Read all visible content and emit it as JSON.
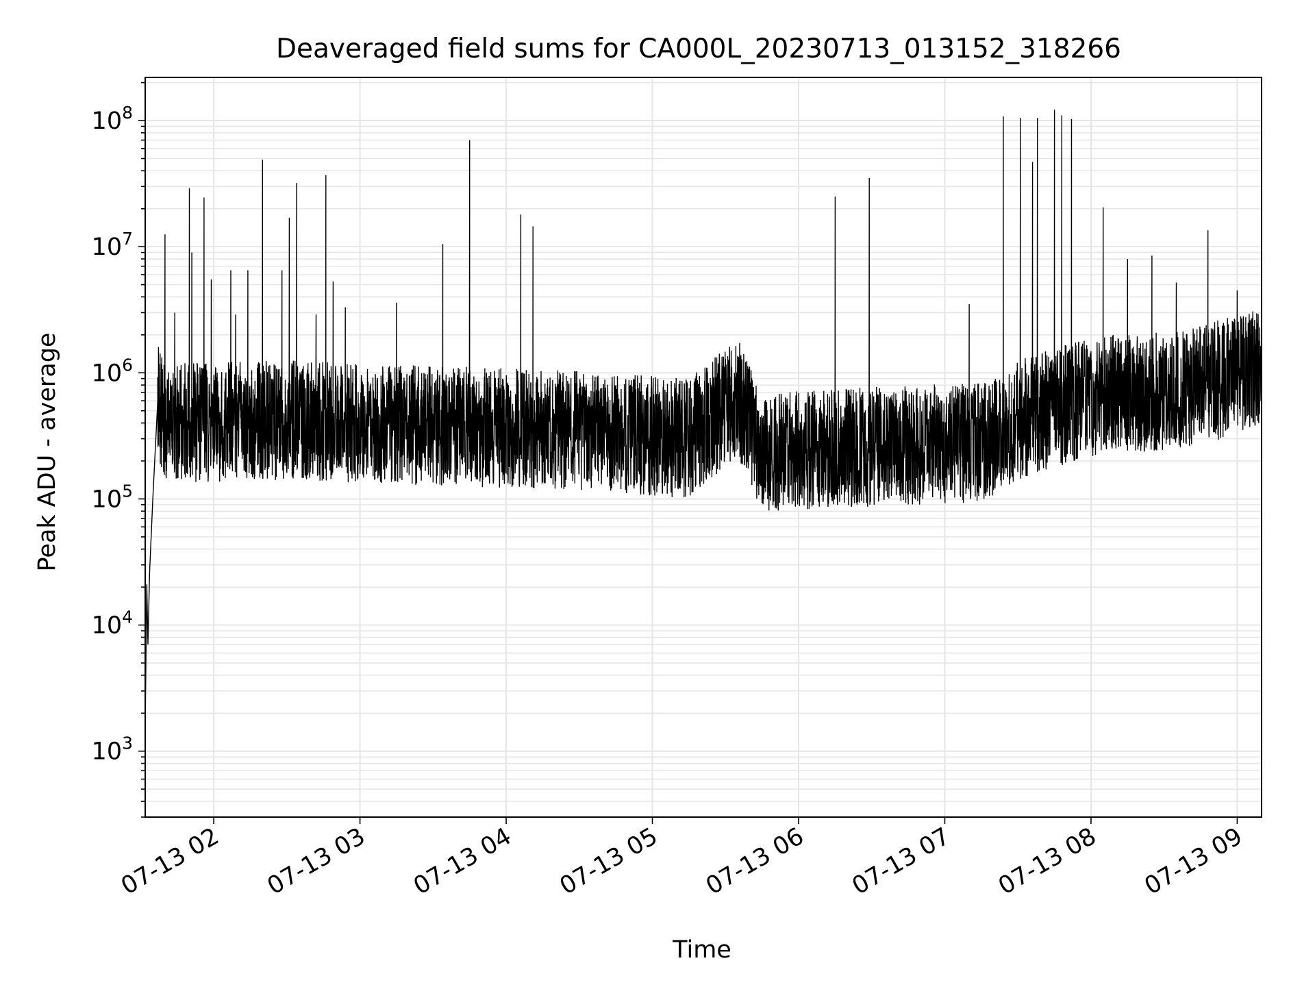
{
  "chart_data": {
    "type": "line",
    "title": "Deaveraged field sums for CA000L_20230713_013152_318266",
    "xlabel": "Time",
    "ylabel": "Peak ADU - average",
    "y_scale": "log",
    "ylim": [
      300,
      220000000
    ],
    "xlim": [
      "2023-07-13 01:31:52",
      "2023-07-13 09:10:00"
    ],
    "grid": true,
    "line_color": "#000000",
    "grid_color": "#e6e6e6",
    "x_ticks": [
      {
        "value": "2023-07-13 02:00",
        "label": "07-13 02"
      },
      {
        "value": "2023-07-13 03:00",
        "label": "07-13 03"
      },
      {
        "value": "2023-07-13 04:00",
        "label": "07-13 04"
      },
      {
        "value": "2023-07-13 05:00",
        "label": "07-13 05"
      },
      {
        "value": "2023-07-13 06:00",
        "label": "07-13 06"
      },
      {
        "value": "2023-07-13 07:00",
        "label": "07-13 07"
      },
      {
        "value": "2023-07-13 08:00",
        "label": "07-13 08"
      },
      {
        "value": "2023-07-13 09:00",
        "label": "07-13 09"
      }
    ],
    "y_ticks": [
      {
        "value": 1000,
        "base": "10",
        "exp": "3"
      },
      {
        "value": 10000,
        "base": "10",
        "exp": "4"
      },
      {
        "value": 100000,
        "base": "10",
        "exp": "5"
      },
      {
        "value": 1000000,
        "base": "10",
        "exp": "6"
      },
      {
        "value": 10000000,
        "base": "10",
        "exp": "7"
      },
      {
        "value": 100000000,
        "base": "10",
        "exp": "8"
      }
    ],
    "series": [
      {
        "baseline": [
          {
            "t": "2023-07-13 01:31:52",
            "v": 1500
          },
          {
            "t": "2023-07-13 01:32:30",
            "v": 21000
          },
          {
            "t": "2023-07-13 01:33:00",
            "v": 7000
          },
          {
            "t": "2023-07-13 01:33:40",
            "v": 26000
          },
          {
            "t": "2023-07-13 01:35:00",
            "v": 100000
          },
          {
            "t": "2023-07-13 01:37:00",
            "v": 600000
          },
          {
            "t": "2023-07-13 01:40:00",
            "v": 400000
          },
          {
            "t": "2023-07-13 02:30:00",
            "v": 420000
          },
          {
            "t": "2023-07-13 03:30:00",
            "v": 380000
          },
          {
            "t": "2023-07-13 04:30:00",
            "v": 350000
          },
          {
            "t": "2023-07-13 05:15:00",
            "v": 300000
          },
          {
            "t": "2023-07-13 05:35:00",
            "v": 650000
          },
          {
            "t": "2023-07-13 05:45:00",
            "v": 230000
          },
          {
            "t": "2023-07-13 06:30:00",
            "v": 260000
          },
          {
            "t": "2023-07-13 07:15:00",
            "v": 280000
          },
          {
            "t": "2023-07-13 07:30:00",
            "v": 420000
          },
          {
            "t": "2023-07-13 08:00:00",
            "v": 650000
          },
          {
            "t": "2023-07-13 08:40:00",
            "v": 750000
          },
          {
            "t": "2023-07-13 09:10:00",
            "v": 1100000
          }
        ],
        "spikes": [
          {
            "t": "2023-07-13 01:40:00",
            "v": 12500000
          },
          {
            "t": "2023-07-13 01:44:00",
            "v": 3000000
          },
          {
            "t": "2023-07-13 01:50:00",
            "v": 29000000
          },
          {
            "t": "2023-07-13 01:51:00",
            "v": 9000000
          },
          {
            "t": "2023-07-13 01:56:00",
            "v": 24500000
          },
          {
            "t": "2023-07-13 01:59:00",
            "v": 5500000
          },
          {
            "t": "2023-07-13 02:07:00",
            "v": 6500000
          },
          {
            "t": "2023-07-13 02:09:00",
            "v": 2900000
          },
          {
            "t": "2023-07-13 02:14:00",
            "v": 6500000
          },
          {
            "t": "2023-07-13 02:20:00",
            "v": 49000000
          },
          {
            "t": "2023-07-13 02:28:00",
            "v": 6500000
          },
          {
            "t": "2023-07-13 02:31:00",
            "v": 17000000
          },
          {
            "t": "2023-07-13 02:34:00",
            "v": 32000000
          },
          {
            "t": "2023-07-13 02:42:00",
            "v": 2900000
          },
          {
            "t": "2023-07-13 02:46:00",
            "v": 37000000
          },
          {
            "t": "2023-07-13 02:49:00",
            "v": 5300000
          },
          {
            "t": "2023-07-13 02:54:00",
            "v": 3300000
          },
          {
            "t": "2023-07-13 03:15:00",
            "v": 3600000
          },
          {
            "t": "2023-07-13 03:34:00",
            "v": 10500000
          },
          {
            "t": "2023-07-13 03:45:00",
            "v": 70000000
          },
          {
            "t": "2023-07-13 04:06:00",
            "v": 18000000
          },
          {
            "t": "2023-07-13 04:11:00",
            "v": 14500000
          },
          {
            "t": "2023-07-13 06:15:00",
            "v": 25000000
          },
          {
            "t": "2023-07-13 06:29:00",
            "v": 35000000
          },
          {
            "t": "2023-07-13 07:10:00",
            "v": 3500000
          },
          {
            "t": "2023-07-13 07:24:00",
            "v": 108000000
          },
          {
            "t": "2023-07-13 07:31:00",
            "v": 105000000
          },
          {
            "t": "2023-07-13 07:36:00",
            "v": 47000000
          },
          {
            "t": "2023-07-13 07:38:00",
            "v": 105000000
          },
          {
            "t": "2023-07-13 07:45:00",
            "v": 122000000
          },
          {
            "t": "2023-07-13 07:48:00",
            "v": 110000000
          },
          {
            "t": "2023-07-13 07:52:00",
            "v": 103000000
          },
          {
            "t": "2023-07-13 08:05:00",
            "v": 20500000
          },
          {
            "t": "2023-07-13 08:15:00",
            "v": 8000000
          },
          {
            "t": "2023-07-13 08:25:00",
            "v": 8500000
          },
          {
            "t": "2023-07-13 08:35:00",
            "v": 5200000
          },
          {
            "t": "2023-07-13 08:48:00",
            "v": 13500000
          },
          {
            "t": "2023-07-13 09:00:00",
            "v": 4500000
          }
        ]
      }
    ]
  }
}
